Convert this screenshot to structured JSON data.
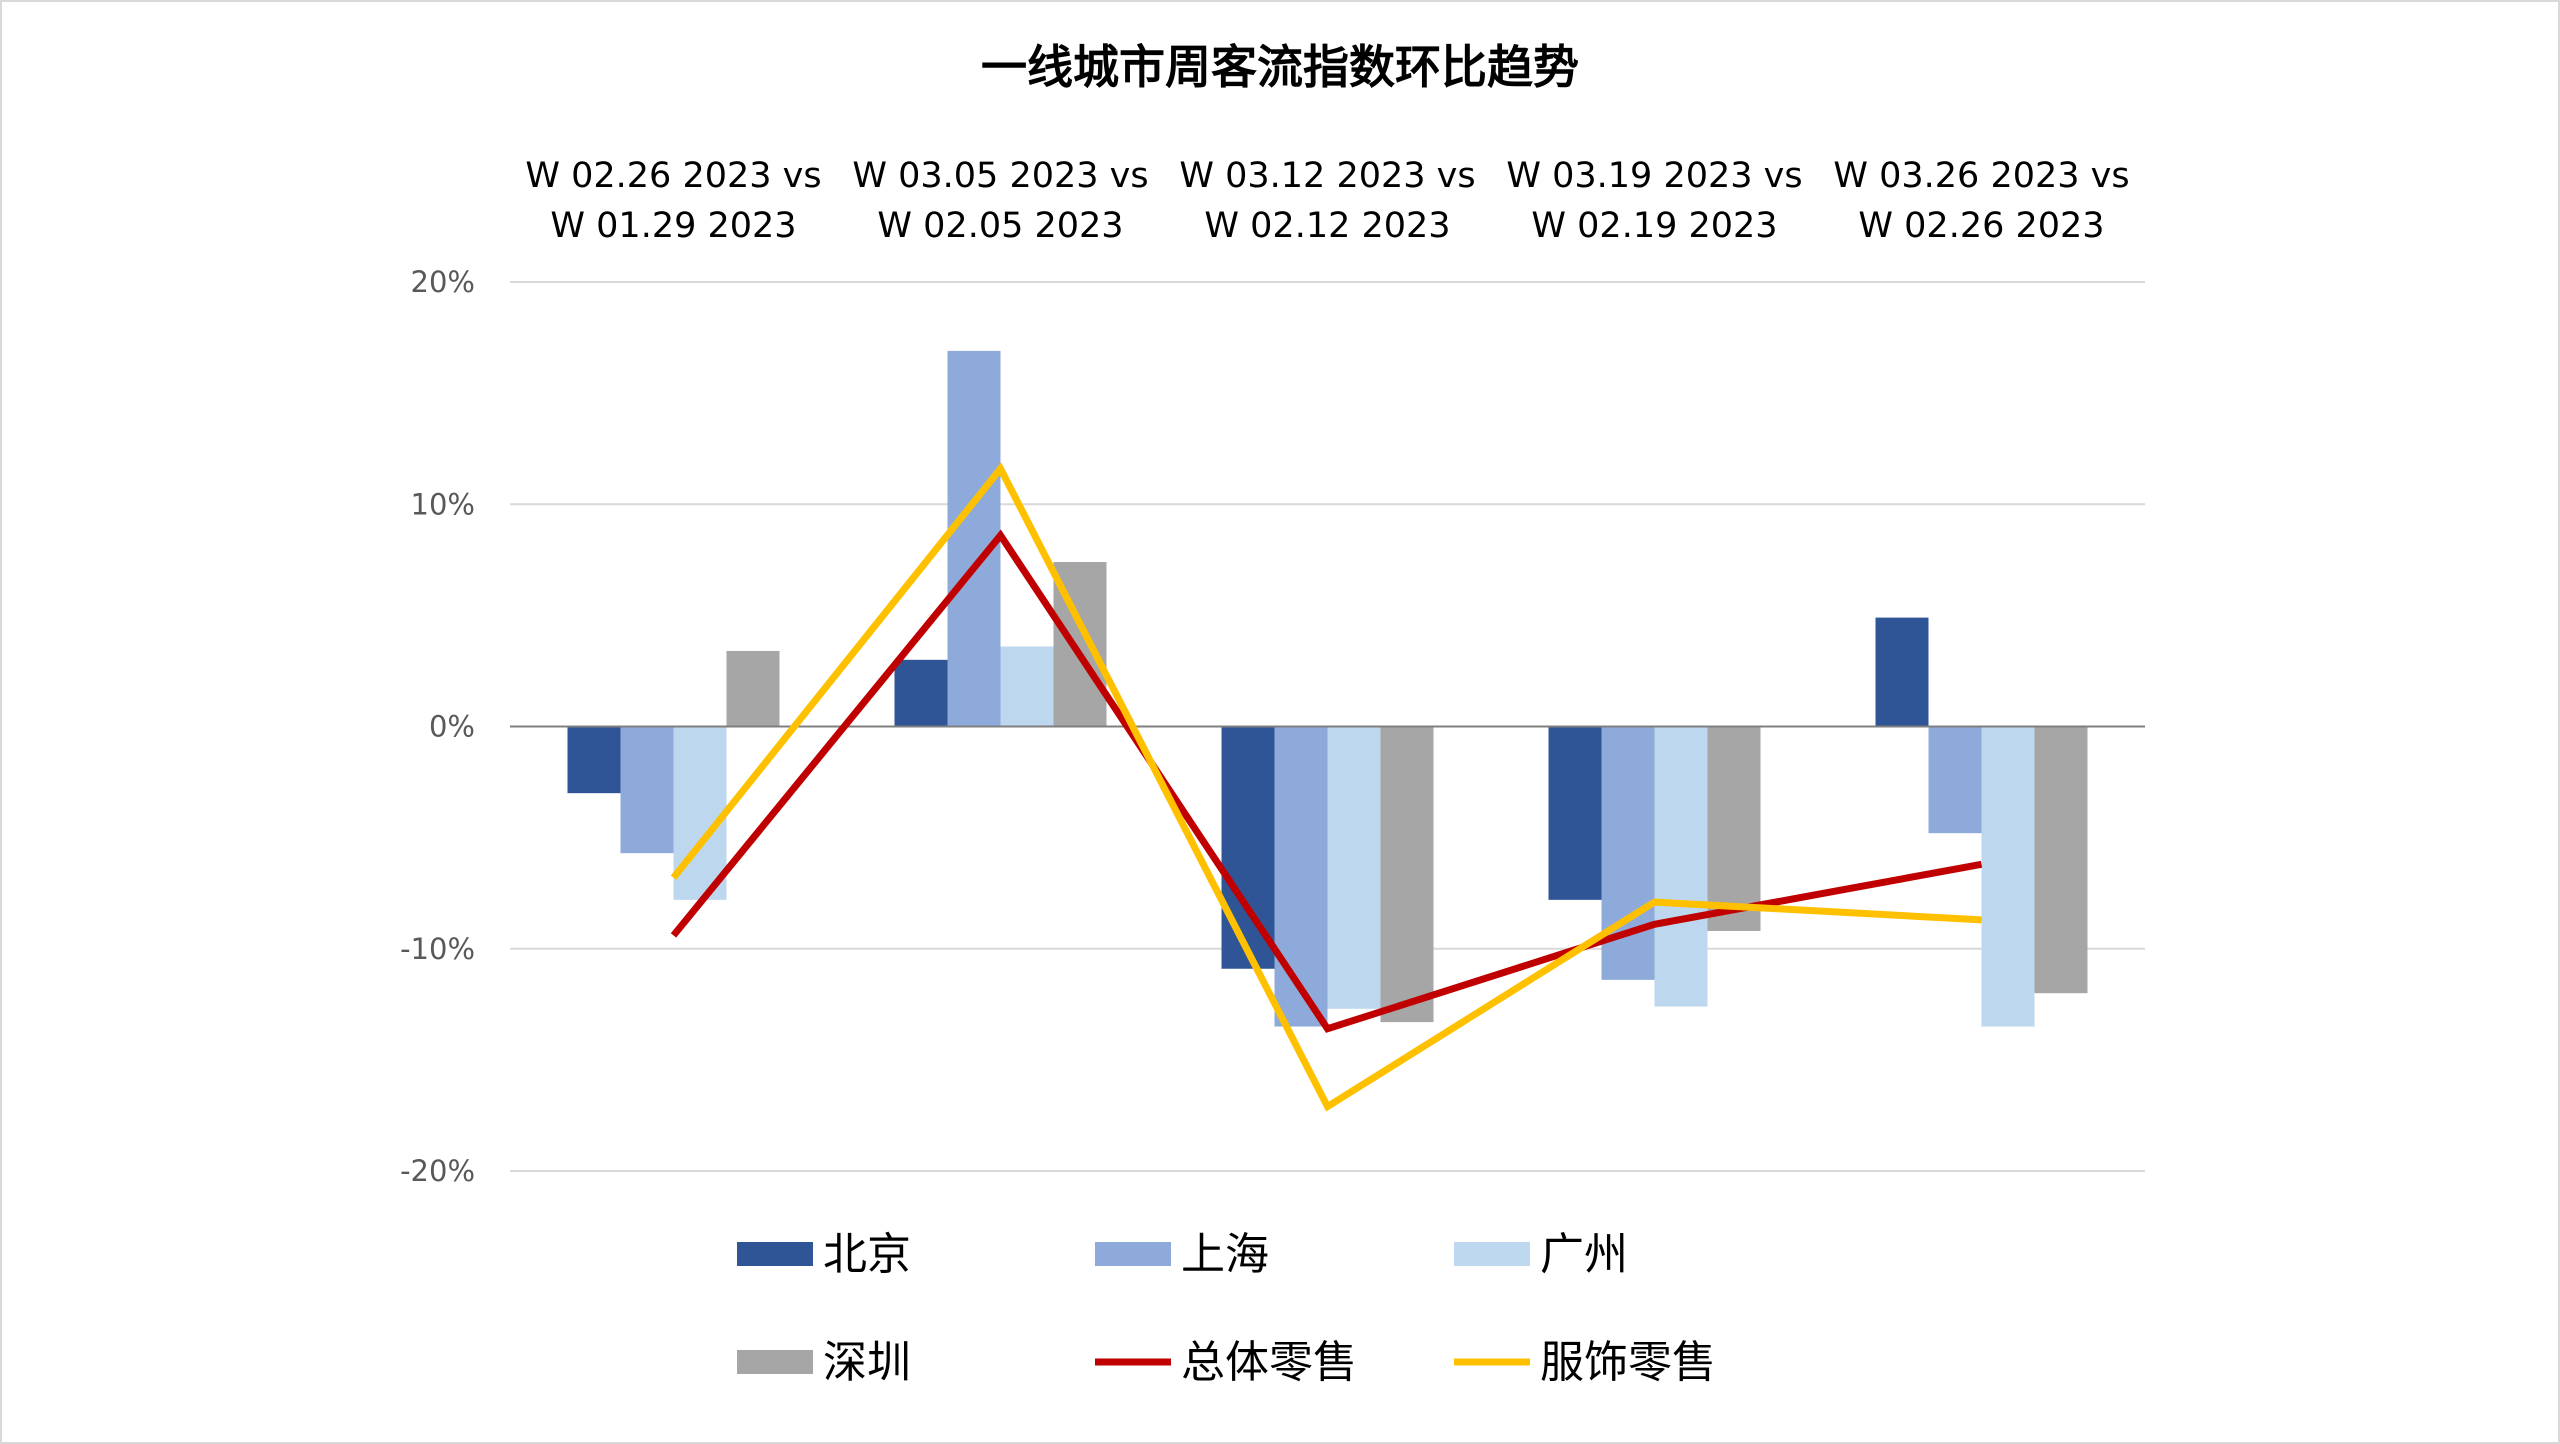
{
  "chart_data": {
    "type": "bar",
    "title": "一线城市周客流指数环比趋势",
    "categories": [
      [
        "W 02.26 2023  vs",
        "W 01.29 2023"
      ],
      [
        "W 03.05 2023  vs",
        "W 02.05 2023"
      ],
      [
        "W 03.12 2023  vs",
        "W 02.12 2023"
      ],
      [
        "W 03.19 2023  vs",
        "W 02.19 2023"
      ],
      [
        "W 03.26 2023  vs",
        "W 02.26 2023"
      ]
    ],
    "xlabel": "",
    "ylabel": "",
    "ylim": [
      -20,
      20
    ],
    "yticks": [
      20,
      10,
      0,
      -10,
      -20
    ],
    "ytick_labels": [
      "20%",
      "10%",
      "0%",
      "-10%",
      "-20%"
    ],
    "grid": true,
    "legend_position": "bottom",
    "bar_series": [
      {
        "name": "北京",
        "color": "#2f5597",
        "values": [
          -3.0,
          3.0,
          -10.9,
          -7.8,
          4.9
        ]
      },
      {
        "name": "上海",
        "color": "#8eaadb",
        "values": [
          -5.7,
          16.9,
          -13.5,
          -11.4,
          -4.8
        ]
      },
      {
        "name": "广州",
        "color": "#bdd7ee",
        "values": [
          -7.8,
          3.6,
          -12.7,
          -12.6,
          -13.5
        ]
      },
      {
        "name": "深圳",
        "color": "#a6a6a6",
        "values": [
          3.4,
          7.4,
          -13.3,
          -9.2,
          -12.0
        ]
      }
    ],
    "line_series": [
      {
        "name": "总体零售",
        "color": "#c00000",
        "values": [
          -9.4,
          8.6,
          -13.6,
          -8.9,
          -6.2
        ]
      },
      {
        "name": "服饰零售",
        "color": "#ffc000",
        "values": [
          -6.8,
          11.6,
          -17.1,
          -7.9,
          -8.7
        ]
      }
    ]
  }
}
